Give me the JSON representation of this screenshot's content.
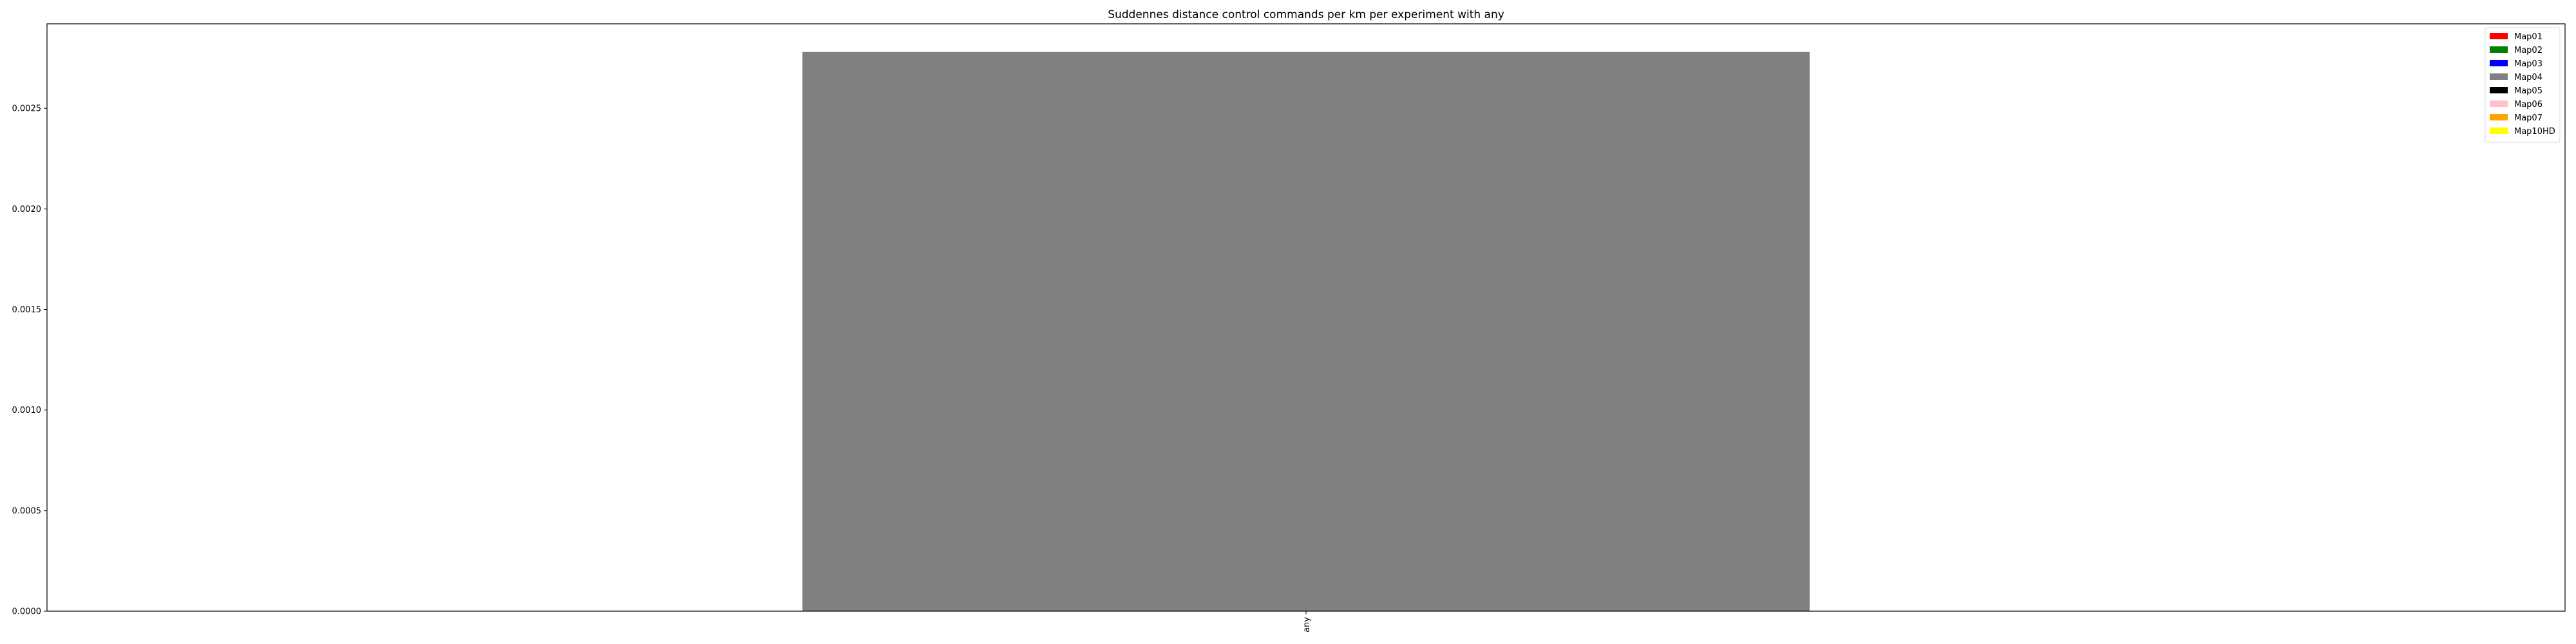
{
  "chart_data": {
    "type": "bar",
    "title": "Suddennes distance control commands per km per experiment with any",
    "xlabel": "",
    "ylabel": "",
    "categories": [
      "any"
    ],
    "series": [
      {
        "name": "Map01",
        "color": "#ff0000",
        "values": [
          0
        ]
      },
      {
        "name": "Map02",
        "color": "#008000",
        "values": [
          0
        ]
      },
      {
        "name": "Map03",
        "color": "#0000ff",
        "values": [
          0
        ]
      },
      {
        "name": "Map04",
        "color": "#808080",
        "values": [
          0.00278
        ]
      },
      {
        "name": "Map05",
        "color": "#000000",
        "values": [
          0
        ]
      },
      {
        "name": "Map06",
        "color": "#ffc0cb",
        "values": [
          0
        ]
      },
      {
        "name": "Map07",
        "color": "#ffa500",
        "values": [
          0
        ]
      },
      {
        "name": "Map10HD",
        "color": "#ffff00",
        "values": [
          0
        ]
      }
    ],
    "ylim": [
      0,
      0.00292
    ],
    "yticks": [
      "0.0000",
      "0.0005",
      "0.0010",
      "0.0015",
      "0.0020",
      "0.0025"
    ],
    "ytick_values": [
      0,
      0.0005,
      0.001,
      0.0015,
      0.002,
      0.0025
    ],
    "legend_position": "top-right",
    "grid": false
  }
}
